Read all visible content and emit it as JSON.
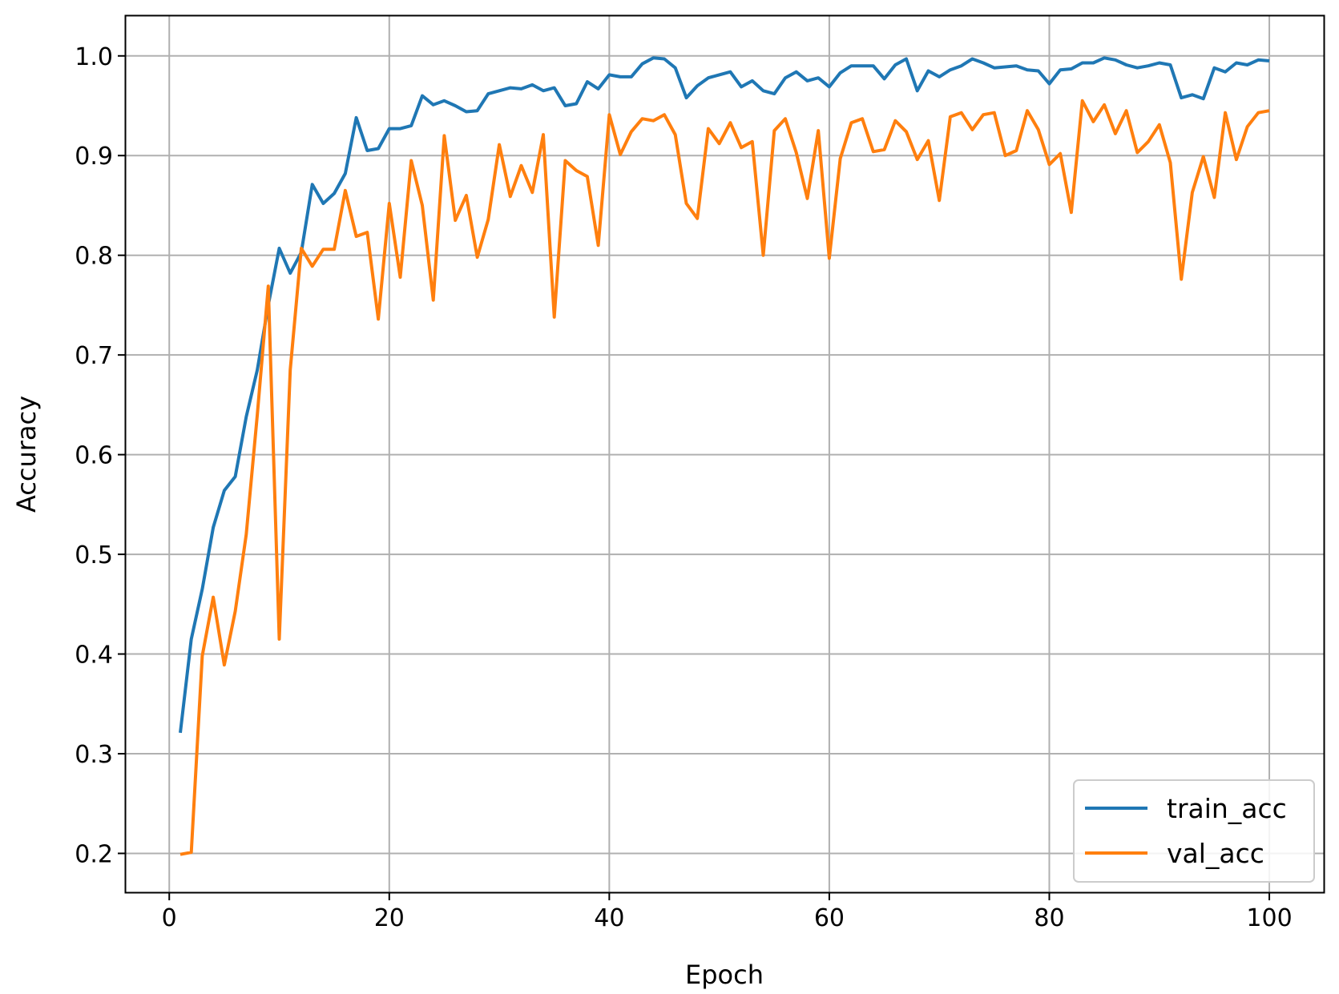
{
  "chart_data": {
    "type": "line",
    "title": "",
    "xlabel": "Epoch",
    "ylabel": "Accuracy",
    "xlim": [
      -3.95,
      104.95
    ],
    "ylim": [
      0.161,
      1.04
    ],
    "xticks": [
      0,
      20,
      40,
      60,
      80,
      100
    ],
    "xtick_labels": [
      "0",
      "20",
      "40",
      "60",
      "80",
      "100"
    ],
    "yticks": [
      0.2,
      0.3,
      0.4,
      0.5,
      0.6,
      0.7,
      0.8,
      0.9,
      1.0
    ],
    "ytick_labels": [
      "0.2",
      "0.3",
      "0.4",
      "0.5",
      "0.6",
      "0.7",
      "0.8",
      "0.9",
      "1.0"
    ],
    "grid": true,
    "legend_position": "lower-right",
    "x": [
      1,
      2,
      3,
      4,
      5,
      6,
      7,
      8,
      9,
      10,
      11,
      12,
      13,
      14,
      15,
      16,
      17,
      18,
      19,
      20,
      21,
      22,
      23,
      24,
      25,
      26,
      27,
      28,
      29,
      30,
      31,
      32,
      33,
      34,
      35,
      36,
      37,
      38,
      39,
      40,
      41,
      42,
      43,
      44,
      45,
      46,
      47,
      48,
      49,
      50,
      51,
      52,
      53,
      54,
      55,
      56,
      57,
      58,
      59,
      60,
      61,
      62,
      63,
      64,
      65,
      66,
      67,
      68,
      69,
      70,
      71,
      72,
      73,
      74,
      75,
      76,
      77,
      78,
      79,
      80,
      81,
      82,
      83,
      84,
      85,
      86,
      87,
      88,
      89,
      90,
      91,
      92,
      93,
      94,
      95,
      96,
      97,
      98,
      99,
      100
    ],
    "series": [
      {
        "name": "train_acc",
        "color": "#1f77b4",
        "values": [
          0.321,
          0.415,
          0.465,
          0.527,
          0.564,
          0.578,
          0.638,
          0.685,
          0.75,
          0.807,
          0.782,
          0.803,
          0.871,
          0.852,
          0.862,
          0.882,
          0.938,
          0.905,
          0.907,
          0.927,
          0.927,
          0.93,
          0.96,
          0.951,
          0.955,
          0.95,
          0.944,
          0.945,
          0.962,
          0.965,
          0.968,
          0.967,
          0.971,
          0.965,
          0.968,
          0.95,
          0.952,
          0.974,
          0.967,
          0.981,
          0.979,
          0.979,
          0.992,
          0.998,
          0.997,
          0.988,
          0.958,
          0.97,
          0.978,
          0.981,
          0.984,
          0.969,
          0.975,
          0.965,
          0.962,
          0.978,
          0.984,
          0.975,
          0.978,
          0.969,
          0.983,
          0.99,
          0.99,
          0.99,
          0.977,
          0.991,
          0.997,
          0.965,
          0.985,
          0.979,
          0.986,
          0.99,
          0.997,
          0.993,
          0.988,
          0.989,
          0.99,
          0.986,
          0.985,
          0.972,
          0.986,
          0.987,
          0.993,
          0.993,
          0.998,
          0.996,
          0.991,
          0.988,
          0.99,
          0.993,
          0.991,
          0.958,
          0.961,
          0.957,
          0.988,
          0.984,
          0.993,
          0.991,
          0.996,
          0.995
        ]
      },
      {
        "name": "val_acc",
        "color": "#ff7f0e",
        "values": [
          0.199,
          0.201,
          0.398,
          0.457,
          0.389,
          0.443,
          0.52,
          0.64,
          0.769,
          0.415,
          0.685,
          0.807,
          0.789,
          0.806,
          0.806,
          0.865,
          0.819,
          0.823,
          0.736,
          0.852,
          0.778,
          0.895,
          0.85,
          0.755,
          0.92,
          0.835,
          0.86,
          0.798,
          0.836,
          0.911,
          0.859,
          0.89,
          0.863,
          0.921,
          0.738,
          0.895,
          0.885,
          0.879,
          0.81,
          0.941,
          0.901,
          0.924,
          0.937,
          0.935,
          0.941,
          0.921,
          0.852,
          0.837,
          0.927,
          0.912,
          0.933,
          0.908,
          0.914,
          0.8,
          0.925,
          0.937,
          0.903,
          0.857,
          0.925,
          0.797,
          0.897,
          0.933,
          0.937,
          0.904,
          0.906,
          0.935,
          0.924,
          0.896,
          0.915,
          0.855,
          0.939,
          0.943,
          0.926,
          0.941,
          0.943,
          0.9,
          0.905,
          0.945,
          0.926,
          0.891,
          0.902,
          0.843,
          0.955,
          0.934,
          0.951,
          0.922,
          0.945,
          0.903,
          0.914,
          0.931,
          0.893,
          0.776,
          0.863,
          0.899,
          0.858,
          0.943,
          0.896,
          0.929,
          0.943,
          0.945
        ]
      }
    ]
  }
}
